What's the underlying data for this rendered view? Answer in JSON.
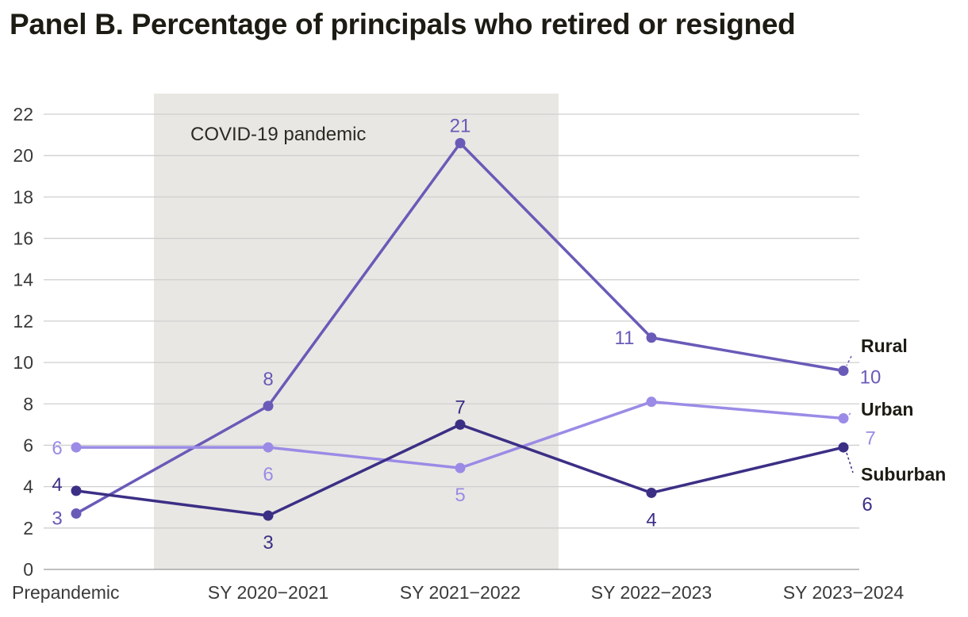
{
  "chart_data": {
    "type": "line",
    "title": "Panel B. Percentage of principals who retired or resigned",
    "xlabel": "",
    "ylabel": "",
    "categories": [
      "Prepandemic",
      "SY 2020−2021",
      "SY 2021−2022",
      "SY 2022−2023",
      "SY 2023−2024"
    ],
    "ylim": [
      0,
      22
    ],
    "yticks": [
      0,
      2,
      4,
      6,
      8,
      10,
      12,
      14,
      16,
      18,
      20,
      22
    ],
    "grid": true,
    "shaded_region": {
      "label": "COVID-19 pandemic",
      "from_category": 1,
      "to_category": 2
    },
    "series": [
      {
        "name": "Rural",
        "color": "#6a5ab8",
        "values": [
          2.7,
          7.9,
          20.6,
          11.2,
          9.6
        ],
        "labels": [
          "3",
          "8",
          "21",
          "11",
          "10"
        ]
      },
      {
        "name": "Urban",
        "color": "#9b8be6",
        "values": [
          5.9,
          5.9,
          4.9,
          8.1,
          7.3
        ],
        "labels": [
          "6",
          "6",
          "5",
          "",
          "7"
        ]
      },
      {
        "name": "Suburban",
        "color": "#3b2f85",
        "values": [
          3.8,
          2.6,
          7.0,
          3.7,
          5.9
        ],
        "labels": [
          "4",
          "3",
          "7",
          "4",
          "6"
        ]
      }
    ]
  }
}
